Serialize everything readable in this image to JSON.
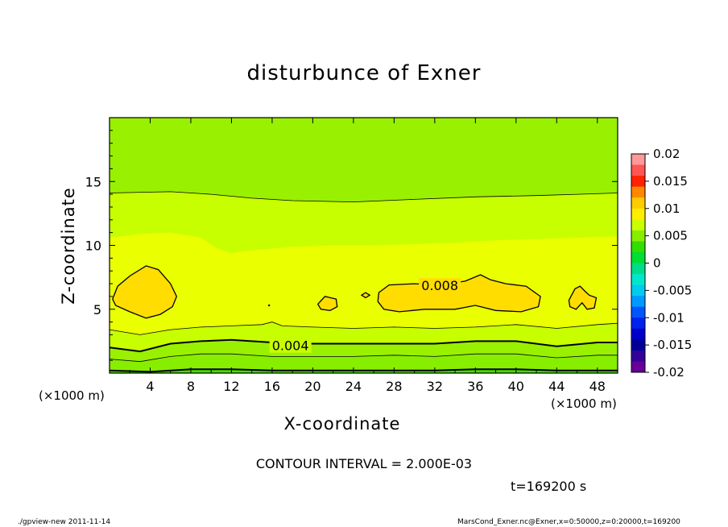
{
  "chart_data": {
    "type": "contour",
    "title": "disturbunce of Exner",
    "xlabel": "X-coordinate",
    "ylabel": "Z-coordinate",
    "x_unit_label": "(×1000 m)",
    "xlim": [
      0,
      50
    ],
    "ylim": [
      0,
      20
    ],
    "x_ticks": [
      4,
      8,
      12,
      16,
      20,
      24,
      28,
      32,
      36,
      40,
      44,
      48
    ],
    "y_ticks": [
      5,
      10,
      15
    ],
    "colorbar": {
      "ticks": [
        "0.02",
        "0.015",
        "0.01",
        "0.005",
        "0",
        "-0.005",
        "-0.01",
        "-0.015",
        "-0.02"
      ],
      "range": [
        -0.02,
        0.02
      ]
    },
    "contour_interval_text": "CONTOUR INTERVAL = 2.000E-03",
    "contour_labels": [
      {
        "text": "0.008",
        "x": 32.5,
        "z": 6.8
      },
      {
        "text": "0.004",
        "x": 17.8,
        "z": 2.1
      }
    ],
    "bands": [
      {
        "level": 0.0,
        "color": "#88ee00",
        "z_top": 0.3
      },
      {
        "level": 0.002,
        "color": "#99f000",
        "z_top": 1.3
      },
      {
        "level": 0.004,
        "color": "#c8ff00",
        "z_top": 2.2
      },
      {
        "level": 0.006,
        "color": "#eaff00",
        "z_top": 3.5
      },
      {
        "level": 0.008,
        "color": "#ffdd00",
        "cells": "mid-level"
      },
      {
        "level": 0.006,
        "color": "#eaff00",
        "z_top": 10.8
      },
      {
        "level": 0.004,
        "color": "#c8ff00",
        "z_top": 14.1
      },
      {
        "level": 0.002,
        "color": "#99f000",
        "z_top": 20
      }
    ],
    "time_text": "t=169200 s"
  },
  "footer": {
    "left": "./gpview-new  2011-11-14",
    "right": "MarsCond_Exner.nc@Exner,x=0:50000,z=0:20000,t=169200"
  }
}
